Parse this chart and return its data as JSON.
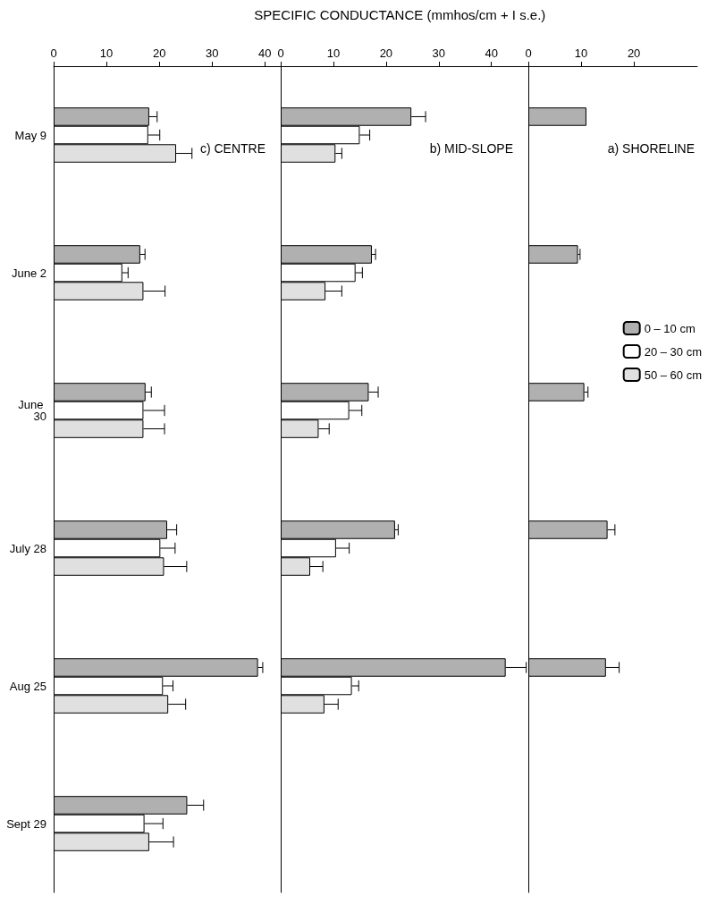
{
  "chart_data": [
    {
      "type": "bar",
      "orientation": "horizontal",
      "title": "a) SHORELINE",
      "categories": [
        "May 9",
        "June 2",
        "June 30",
        "July 28",
        "Aug 25",
        "Sept 29"
      ],
      "xlim": [
        0,
        32
      ],
      "xticks": [
        0,
        10,
        20
      ],
      "tick_labels": "x",
      "legend": "right",
      "grid": false,
      "series": [
        {
          "name": "0 – 10 cm",
          "color": "#b0b0b0",
          "values": [
            11.0,
            9.4,
            10.6,
            15.0,
            14.7,
            null
          ],
          "errors": [
            null,
            [
              9.4,
              9.8
            ],
            [
              10.6,
              11.3
            ],
            [
              15.0,
              16.4
            ],
            [
              14.7,
              17.2
            ],
            null
          ]
        },
        {
          "name": "20 – 30 cm",
          "color": "#ffffff",
          "values": [
            null,
            null,
            null,
            null,
            null,
            null
          ]
        },
        {
          "name": "50 – 60 cm",
          "color": "#e0e0e0",
          "values": [
            null,
            null,
            null,
            null,
            null,
            null
          ]
        }
      ]
    },
    {
      "type": "bar",
      "orientation": "horizontal",
      "title": "b) MID-SLOPE",
      "xlabel": "SPECIFIC CONDUCTANCE (mmhos/cm + I s.e.)",
      "categories": [
        "May 9",
        "June 2",
        "June 30",
        "July 28",
        "Aug 25",
        "Sept 29"
      ],
      "xlim": [
        0,
        47
      ],
      "xticks": [
        0,
        10,
        20,
        30,
        40
      ],
      "tick_labels": "x",
      "legend": false,
      "grid": false,
      "series": [
        {
          "color": "#b0b0b0",
          "values": [
            24.8,
            17.3,
            16.7,
            21.7,
            42.7,
            null
          ],
          "errors": [
            [
              24.8,
              27.5
            ],
            [
              17.3,
              18.0
            ],
            [
              16.7,
              18.5
            ],
            [
              21.7,
              22.3
            ],
            [
              42.7,
              46.6
            ],
            null
          ]
        },
        {
          "color": "#ffffff",
          "values": [
            15.0,
            14.2,
            13.0,
            10.5,
            13.5,
            null
          ],
          "errors": [
            [
              15.0,
              16.9
            ],
            [
              14.2,
              15.5
            ],
            [
              13.0,
              15.4
            ],
            [
              10.5,
              13.0
            ],
            [
              13.5,
              14.8
            ],
            null
          ]
        },
        {
          "color": "#e0e0e0",
          "values": [
            10.4,
            8.5,
            7.2,
            5.6,
            8.3,
            null
          ],
          "errors": [
            [
              10.4,
              11.6
            ],
            [
              8.5,
              11.6
            ],
            [
              7.2,
              9.2
            ],
            [
              5.6,
              8.0
            ],
            [
              8.3,
              10.9
            ],
            null
          ]
        }
      ]
    },
    {
      "type": "bar",
      "orientation": "horizontal",
      "title": "c) CENTRE",
      "categories": [
        "May 9",
        "June 2",
        "June 30",
        "July 28",
        "Aug 25",
        "Sept 29"
      ],
      "xlim": [
        0,
        43
      ],
      "xticks": [
        0,
        10,
        20,
        30,
        40
      ],
      "legend": false,
      "grid": false,
      "series": [
        {
          "color": "#b0b0b0",
          "values": [
            18.1,
            16.4,
            17.4,
            21.5,
            38.7,
            25.3
          ],
          "errors": [
            [
              18.1,
              19.6
            ],
            [
              16.4,
              17.3
            ],
            [
              17.4,
              18.5
            ],
            [
              21.5,
              23.3
            ],
            [
              38.7,
              39.6
            ],
            [
              25.3,
              28.4
            ]
          ]
        },
        {
          "color": "#ffffff",
          "values": [
            17.9,
            13.0,
            17.0,
            20.2,
            20.7,
            17.2
          ],
          "errors": [
            [
              17.9,
              20.1
            ],
            [
              13.0,
              14.1
            ],
            [
              17.0,
              21.0
            ],
            [
              20.2,
              23.0
            ],
            [
              20.7,
              22.6
            ],
            [
              17.2,
              20.7
            ]
          ]
        },
        {
          "color": "#e0e0e0",
          "values": [
            23.2,
            17.0,
            17.0,
            20.9,
            21.7,
            18.1
          ],
          "errors": [
            [
              23.2,
              26.2
            ],
            [
              17.0,
              21.1
            ],
            [
              17.0,
              21.0
            ],
            [
              20.9,
              25.2
            ],
            [
              21.7,
              25.0
            ],
            [
              18.1,
              22.7
            ]
          ]
        }
      ]
    }
  ]
}
